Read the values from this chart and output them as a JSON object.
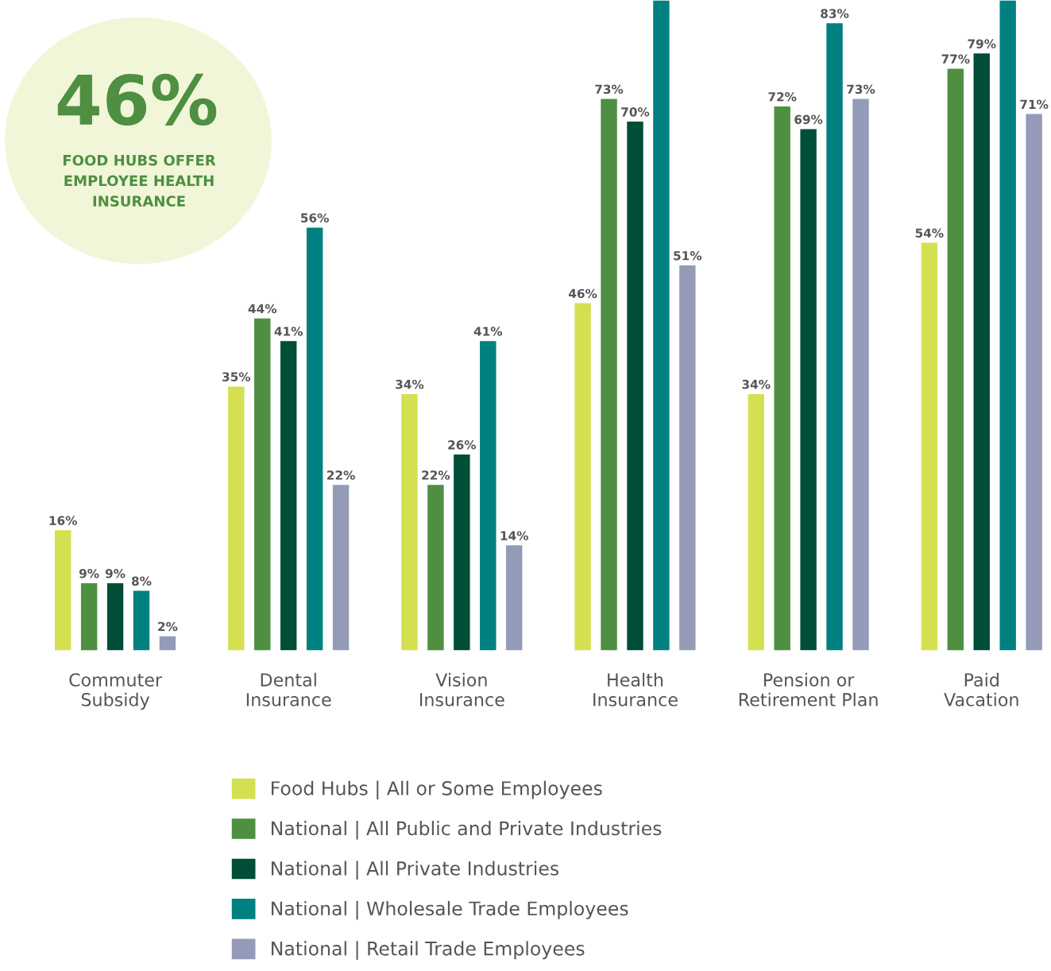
{
  "chart_data": {
    "type": "bar",
    "categories": [
      "Commuter\nSubsidy",
      "Dental\nInsurance",
      "Vision\nInsurance",
      "Health\nInsurance",
      "Pension or\nRetirement Plan",
      "Paid\nVacation"
    ],
    "series": [
      {
        "name": "Food Hubs | All or Some Employees",
        "color": "#d4e04f",
        "values": [
          16,
          35,
          34,
          46,
          34,
          54
        ],
        "value_labels": [
          "16%",
          "35%",
          "34%",
          "46%",
          "34%",
          "54%"
        ]
      },
      {
        "name": "National | All Public and Private Industries",
        "color": "#4e8f41",
        "values": [
          9,
          44,
          22,
          73,
          72,
          77
        ],
        "value_labels": [
          "9%",
          "44%",
          "22%",
          "73%",
          "72%",
          "77%"
        ]
      },
      {
        "name": "National | All Private Industries",
        "color": "#004d38",
        "values": [
          9,
          41,
          26,
          70,
          69,
          79
        ],
        "value_labels": [
          "9%",
          "41%",
          "26%",
          "70%",
          "69%",
          "79%"
        ]
      },
      {
        "name": "National | Wholesale Trade Employees",
        "color": "#008080",
        "values": [
          8,
          56,
          41,
          86,
          83,
          86
        ],
        "value_labels": [
          "8%",
          "56%",
          "41%",
          null,
          "83%",
          null
        ]
      },
      {
        "name": "National | Retail Trade Employees",
        "color": "#939bb8",
        "values": [
          2,
          22,
          14,
          51,
          73,
          71
        ],
        "value_labels": [
          "2%",
          "22%",
          "14%",
          "51%",
          "73%",
          "71%"
        ]
      }
    ],
    "ylim": [
      0,
      86
    ],
    "tick_labels": "x",
    "grid": false,
    "legend": "bottom",
    "annotations": [
      "46%",
      "FOOD HUBS OFFER\nEMPLOYEE HEALTH\nINSURANCE"
    ]
  }
}
